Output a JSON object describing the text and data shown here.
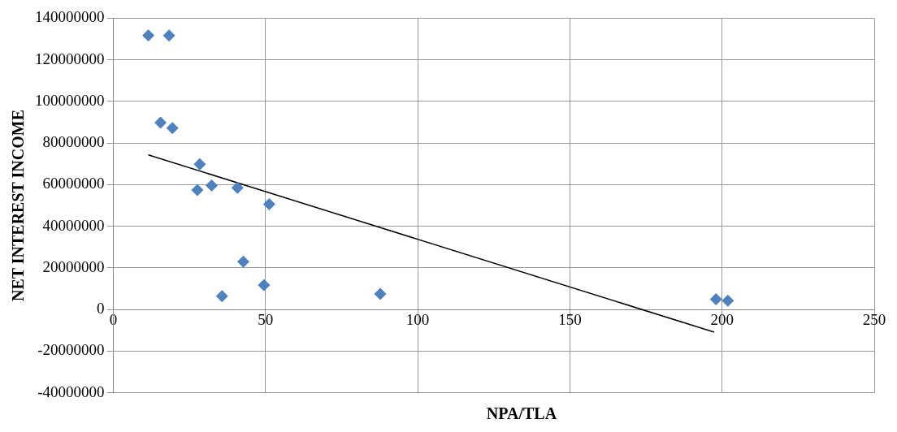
{
  "chart_data": {
    "type": "scatter",
    "xlabel": "NPA/TLA",
    "ylabel": "NET INTEREST INCOME",
    "xlim": [
      0,
      250
    ],
    "xticks": [
      0,
      50,
      100,
      150,
      200,
      250
    ],
    "ylim": [
      -40000000,
      140000000
    ],
    "yticks": [
      -40000000,
      -20000000,
      0,
      20000000,
      40000000,
      60000000,
      80000000,
      100000000,
      120000000,
      140000000
    ],
    "grid": true,
    "marker": "diamond",
    "legend": false,
    "series": [
      {
        "color": "#4f81bd",
        "x": [
          11.5,
          18.3,
          15.5,
          19.4,
          28.4,
          27.6,
          32.3,
          40.8,
          51.2,
          42.7,
          35.7,
          49.5,
          87.7,
          198,
          201.9
        ],
        "values": [
          131700000,
          131700000,
          89800000,
          87200000,
          69800000,
          57400000,
          59600000,
          58500000,
          50600000,
          23000000,
          6400000,
          11700000,
          7500000,
          4900000,
          4200000
        ]
      },
      {
        "type": "line",
        "color": "#000000",
        "line_style": "solid",
        "marker": "none",
        "x": [
          11.5,
          197.4
        ],
        "values": [
          74300000,
          -10900000
        ]
      }
    ]
  }
}
